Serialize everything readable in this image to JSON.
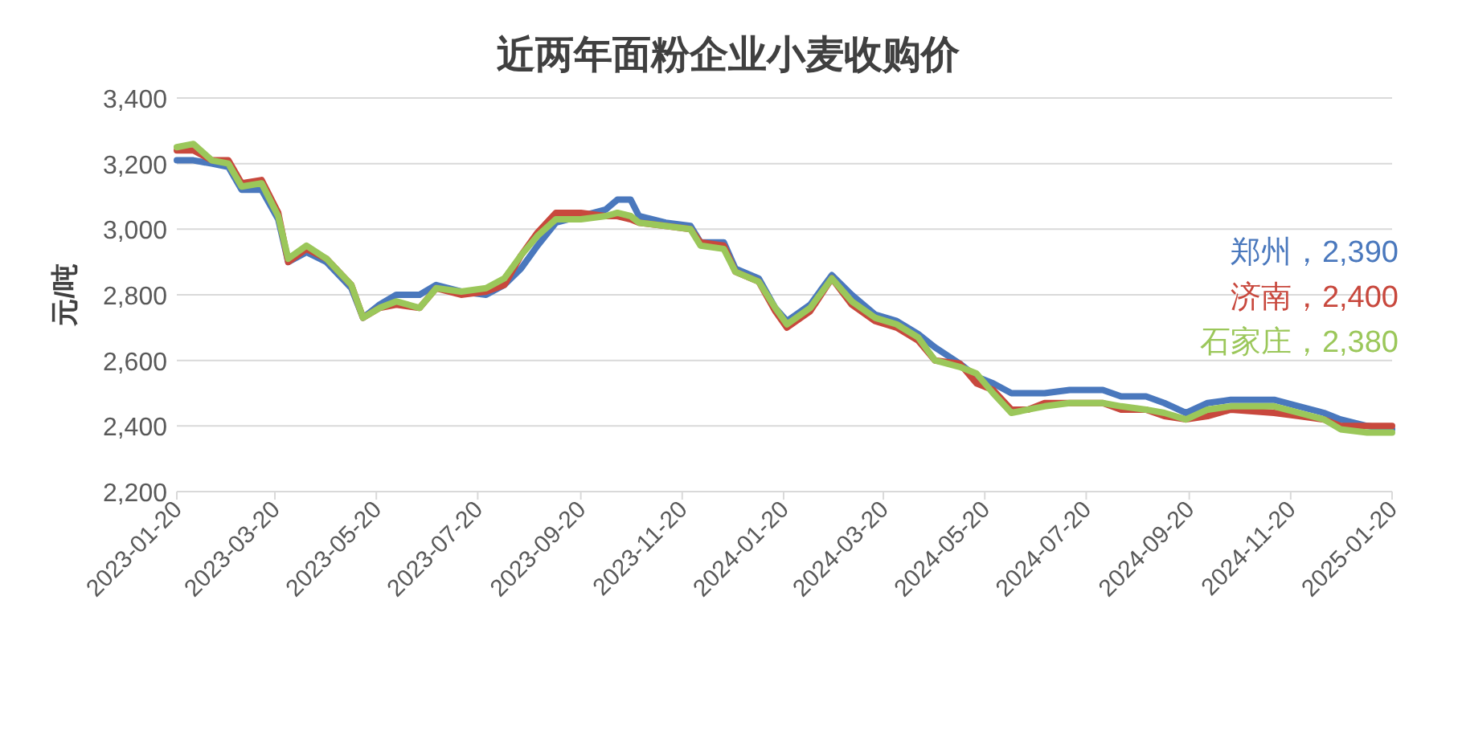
{
  "chart_data": {
    "type": "line",
    "title": "近两年面粉企业小麦收购价",
    "ylabel": "元/吨",
    "x": [
      "2023-01-20",
      "2023-01-30",
      "2023-02-10",
      "2023-02-20",
      "2023-02-28",
      "2023-03-12",
      "2023-03-22",
      "2023-03-28",
      "2023-04-08",
      "2023-04-20",
      "2023-05-05",
      "2023-05-12",
      "2023-05-22",
      "2023-06-01",
      "2023-06-15",
      "2023-06-25",
      "2023-07-10",
      "2023-07-25",
      "2023-08-05",
      "2023-08-15",
      "2023-08-25",
      "2023-09-05",
      "2023-09-20",
      "2023-10-05",
      "2023-10-12",
      "2023-10-20",
      "2023-10-25",
      "2023-11-10",
      "2023-11-25",
      "2023-12-01",
      "2023-12-15",
      "2023-12-22",
      "2024-01-05",
      "2024-01-15",
      "2024-01-22",
      "2024-02-05",
      "2024-02-18",
      "2024-03-01",
      "2024-03-15",
      "2024-03-28",
      "2024-04-10",
      "2024-04-20",
      "2024-05-05",
      "2024-05-15",
      "2024-05-25",
      "2024-06-05",
      "2024-06-15",
      "2024-06-25",
      "2024-07-10",
      "2024-07-30",
      "2024-08-10",
      "2024-08-25",
      "2024-09-05",
      "2024-09-18",
      "2024-10-01",
      "2024-10-15",
      "2024-11-10",
      "2024-11-25",
      "2024-12-10",
      "2024-12-20",
      "2025-01-05",
      "2025-01-20"
    ],
    "series": [
      {
        "name": "郑州，2,390",
        "color": "#4a78bd",
        "values": [
          3210,
          3210,
          3200,
          3190,
          3120,
          3120,
          3030,
          2900,
          2930,
          2900,
          2820,
          2730,
          2770,
          2800,
          2800,
          2830,
          2810,
          2800,
          2830,
          2880,
          2950,
          3020,
          3040,
          3060,
          3090,
          3090,
          3040,
          3020,
          3010,
          2960,
          2960,
          2880,
          2850,
          2760,
          2720,
          2770,
          2860,
          2800,
          2740,
          2720,
          2680,
          2640,
          2590,
          2550,
          2530,
          2500,
          2500,
          2500,
          2510,
          2510,
          2490,
          2490,
          2470,
          2440,
          2470,
          2480,
          2480,
          2460,
          2440,
          2420,
          2400,
          2390
        ]
      },
      {
        "name": "济南，2,400",
        "color": "#c8483d",
        "values": [
          3240,
          3240,
          3210,
          3210,
          3140,
          3150,
          3050,
          2900,
          2940,
          2910,
          2830,
          2730,
          2760,
          2770,
          2760,
          2820,
          2800,
          2810,
          2830,
          2920,
          2990,
          3050,
          3050,
          3040,
          3040,
          3030,
          3020,
          3010,
          3000,
          2960,
          2950,
          2870,
          2840,
          2750,
          2700,
          2750,
          2850,
          2770,
          2720,
          2700,
          2660,
          2600,
          2590,
          2530,
          2510,
          2450,
          2450,
          2470,
          2470,
          2470,
          2450,
          2450,
          2430,
          2420,
          2430,
          2450,
          2440,
          2430,
          2420,
          2400,
          2400,
          2400
        ]
      },
      {
        "name": "石家庄，2,380",
        "color": "#9bc75a",
        "values": [
          3250,
          3260,
          3210,
          3200,
          3130,
          3140,
          3040,
          2910,
          2950,
          2910,
          2830,
          2730,
          2760,
          2780,
          2760,
          2820,
          2810,
          2820,
          2850,
          2920,
          2980,
          3030,
          3030,
          3040,
          3050,
          3040,
          3020,
          3010,
          3000,
          2950,
          2940,
          2870,
          2840,
          2760,
          2710,
          2760,
          2850,
          2780,
          2730,
          2710,
          2670,
          2600,
          2580,
          2560,
          2500,
          2440,
          2450,
          2460,
          2470,
          2470,
          2460,
          2450,
          2440,
          2420,
          2450,
          2460,
          2460,
          2440,
          2420,
          2390,
          2380,
          2380
        ]
      }
    ],
    "xlim": [
      "2023-01-20",
      "2025-01-20"
    ],
    "xticks": [
      "2023-01-20",
      "2023-03-20",
      "2023-05-20",
      "2023-07-20",
      "2023-09-20",
      "2023-11-20",
      "2024-01-20",
      "2024-03-20",
      "2024-05-20",
      "2024-07-20",
      "2024-09-20",
      "2024-11-20",
      "2025-01-20"
    ],
    "ylim": [
      2200,
      3400
    ],
    "yticks": [
      {
        "value": 2200,
        "label": "2,200"
      },
      {
        "value": 2400,
        "label": "2,400"
      },
      {
        "value": 2600,
        "label": "2,600"
      },
      {
        "value": 2800,
        "label": "2,800"
      },
      {
        "value": 3000,
        "label": "3,000"
      },
      {
        "value": 3200,
        "label": "3,200"
      },
      {
        "value": 3400,
        "label": "3,400"
      }
    ],
    "grid": "y",
    "legend": "right",
    "line_style": "solid",
    "marker": "none"
  }
}
